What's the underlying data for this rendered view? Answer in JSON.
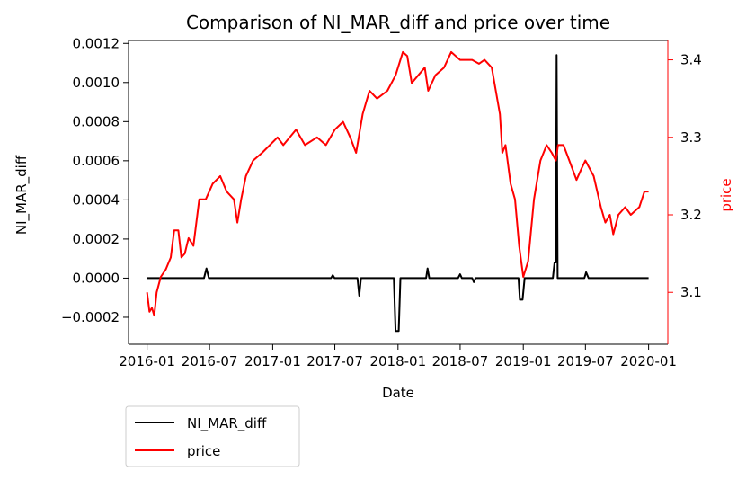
{
  "chart_data": {
    "type": "line",
    "title": "Comparison of NI_MAR_diff and price over time",
    "xlabel": "Date",
    "ylabel_left": "NI_MAR_diff",
    "ylabel_right": "price",
    "x_tick_labels": [
      "2016-01",
      "2016-07",
      "2017-01",
      "2017-07",
      "2018-01",
      "2018-07",
      "2019-01",
      "2019-07",
      "2020-01"
    ],
    "y_left_ticks": [
      -0.0002,
      0.0,
      0.0002,
      0.0004,
      0.0006,
      0.0008,
      0.001,
      0.0012
    ],
    "y_left_tick_labels": [
      "−0.0002",
      "0.0000",
      "0.0002",
      "0.0004",
      "0.0006",
      "0.0008",
      "0.0010",
      "0.0012"
    ],
    "y_right_ticks": [
      3.1,
      3.2,
      3.3,
      3.4
    ],
    "y_right_tick_labels": [
      "3.1",
      "3.2",
      "3.3",
      "3.4"
    ],
    "xlim": [
      "2015-11-08",
      "2020-02-26"
    ],
    "ylim_left": [
      -0.000338,
      0.001215
    ],
    "ylim_right": [
      3.033,
      3.425
    ],
    "grid": false,
    "legend_position": "below-left",
    "colors": {
      "NI_MAR_diff": "#000000",
      "price": "#ff0000",
      "right_axis": "#ff0000"
    },
    "series": [
      {
        "name": "NI_MAR_diff",
        "axis": "left",
        "color": "#000000",
        "points": [
          [
            "2016-01-01",
            0.0
          ],
          [
            "2016-06-15",
            0.0
          ],
          [
            "2016-06-22",
            5e-05
          ],
          [
            "2016-06-29",
            0.0
          ],
          [
            "2017-06-20",
            0.0
          ],
          [
            "2017-06-25",
            1.5e-05
          ],
          [
            "2017-06-30",
            0.0
          ],
          [
            "2017-09-05",
            0.0
          ],
          [
            "2017-09-10",
            -9e-05
          ],
          [
            "2017-09-15",
            0.0
          ],
          [
            "2017-12-20",
            0.0
          ],
          [
            "2017-12-25",
            -0.00027
          ],
          [
            "2018-01-03",
            -0.00027
          ],
          [
            "2018-01-08",
            0.0
          ],
          [
            "2018-03-24",
            0.0
          ],
          [
            "2018-03-28",
            5e-05
          ],
          [
            "2018-04-02",
            0.0
          ],
          [
            "2018-06-25",
            0.0
          ],
          [
            "2018-07-01",
            2e-05
          ],
          [
            "2018-07-06",
            0.0
          ],
          [
            "2018-08-05",
            0.0
          ],
          [
            "2018-08-10",
            -2e-05
          ],
          [
            "2018-08-15",
            0.0
          ],
          [
            "2018-12-18",
            0.0
          ],
          [
            "2018-12-22",
            -0.00011
          ],
          [
            "2018-12-30",
            -0.00011
          ],
          [
            "2019-01-05",
            0.0
          ],
          [
            "2019-03-28",
            0.0
          ],
          [
            "2019-04-02",
            8e-05
          ],
          [
            "2019-04-06",
            8e-05
          ],
          [
            "2019-04-08",
            0.00114
          ],
          [
            "2019-04-11",
            0.0
          ],
          [
            "2019-06-28",
            0.0
          ],
          [
            "2019-07-03",
            3e-05
          ],
          [
            "2019-07-10",
            0.0
          ],
          [
            "2020-01-01",
            0.0
          ]
        ]
      },
      {
        "name": "price",
        "axis": "right",
        "color": "#ff0000",
        "points": [
          [
            "2016-01-01",
            3.1
          ],
          [
            "2016-01-08",
            3.075
          ],
          [
            "2016-01-15",
            3.08
          ],
          [
            "2016-01-22",
            3.07
          ],
          [
            "2016-01-29",
            3.1
          ],
          [
            "2016-02-10",
            3.12
          ],
          [
            "2016-02-25",
            3.13
          ],
          [
            "2016-03-10",
            3.145
          ],
          [
            "2016-03-20",
            3.18
          ],
          [
            "2016-04-01",
            3.18
          ],
          [
            "2016-04-10",
            3.145
          ],
          [
            "2016-04-20",
            3.15
          ],
          [
            "2016-05-01",
            3.17
          ],
          [
            "2016-05-15",
            3.16
          ],
          [
            "2016-06-01",
            3.22
          ],
          [
            "2016-06-20",
            3.22
          ],
          [
            "2016-07-10",
            3.24
          ],
          [
            "2016-08-01",
            3.25
          ],
          [
            "2016-08-20",
            3.23
          ],
          [
            "2016-09-10",
            3.22
          ],
          [
            "2016-09-20",
            3.19
          ],
          [
            "2016-10-01",
            3.22
          ],
          [
            "2016-10-15",
            3.25
          ],
          [
            "2016-11-05",
            3.27
          ],
          [
            "2016-12-01",
            3.28
          ],
          [
            "2017-01-15",
            3.3
          ],
          [
            "2017-02-01",
            3.29
          ],
          [
            "2017-03-10",
            3.31
          ],
          [
            "2017-04-05",
            3.29
          ],
          [
            "2017-05-10",
            3.3
          ],
          [
            "2017-06-05",
            3.29
          ],
          [
            "2017-07-01",
            3.31
          ],
          [
            "2017-07-25",
            3.32
          ],
          [
            "2017-08-15",
            3.3
          ],
          [
            "2017-09-01",
            3.28
          ],
          [
            "2017-09-20",
            3.33
          ],
          [
            "2017-10-10",
            3.36
          ],
          [
            "2017-11-01",
            3.35
          ],
          [
            "2017-12-01",
            3.36
          ],
          [
            "2017-12-25",
            3.38
          ],
          [
            "2018-01-15",
            3.41
          ],
          [
            "2018-01-28",
            3.405
          ],
          [
            "2018-02-10",
            3.37
          ],
          [
            "2018-03-01",
            3.38
          ],
          [
            "2018-03-20",
            3.39
          ],
          [
            "2018-03-30",
            3.36
          ],
          [
            "2018-04-20",
            3.38
          ],
          [
            "2018-05-15",
            3.39
          ],
          [
            "2018-06-05",
            3.41
          ],
          [
            "2018-07-01",
            3.4
          ],
          [
            "2018-08-05",
            3.4
          ],
          [
            "2018-08-25",
            3.395
          ],
          [
            "2018-09-10",
            3.4
          ],
          [
            "2018-10-01",
            3.39
          ],
          [
            "2018-10-25",
            3.33
          ],
          [
            "2018-11-01",
            3.28
          ],
          [
            "2018-11-10",
            3.29
          ],
          [
            "2018-11-25",
            3.24
          ],
          [
            "2018-12-08",
            3.22
          ],
          [
            "2018-12-20",
            3.16
          ],
          [
            "2019-01-01",
            3.12
          ],
          [
            "2019-01-15",
            3.14
          ],
          [
            "2019-02-01",
            3.22
          ],
          [
            "2019-02-20",
            3.27
          ],
          [
            "2019-03-10",
            3.29
          ],
          [
            "2019-03-25",
            3.28
          ],
          [
            "2019-04-06",
            3.27
          ],
          [
            "2019-04-12",
            3.29
          ],
          [
            "2019-04-28",
            3.29
          ],
          [
            "2019-05-15",
            3.27
          ],
          [
            "2019-06-05",
            3.245
          ],
          [
            "2019-06-20",
            3.26
          ],
          [
            "2019-07-01",
            3.27
          ],
          [
            "2019-07-25",
            3.25
          ],
          [
            "2019-08-15",
            3.21
          ],
          [
            "2019-08-28",
            3.19
          ],
          [
            "2019-09-10",
            3.2
          ],
          [
            "2019-09-20",
            3.175
          ],
          [
            "2019-10-05",
            3.2
          ],
          [
            "2019-10-25",
            3.21
          ],
          [
            "2019-11-10",
            3.2
          ],
          [
            "2019-12-05",
            3.21
          ],
          [
            "2019-12-20",
            3.23
          ],
          [
            "2020-01-01",
            3.23
          ]
        ]
      }
    ]
  },
  "legend": {
    "items": [
      {
        "label": "NI_MAR_diff",
        "color": "#000000"
      },
      {
        "label": "price",
        "color": "#ff0000"
      }
    ]
  }
}
